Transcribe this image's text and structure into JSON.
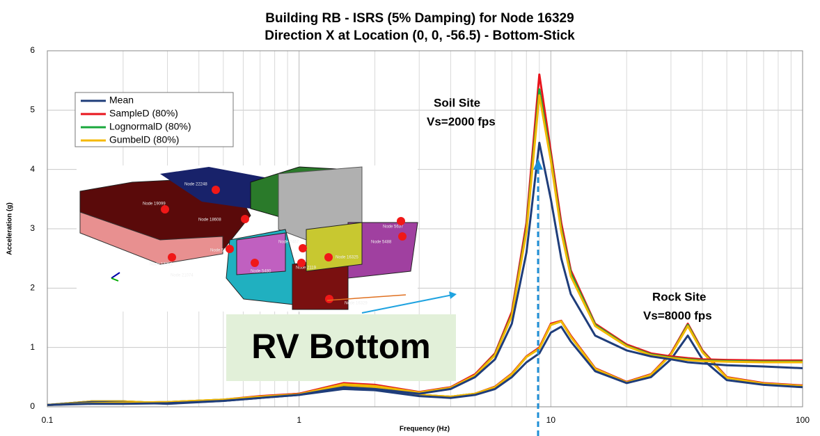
{
  "chart_data": {
    "type": "line",
    "title_lines": [
      "Building RB - ISRS (5% Damping) for Node 16329",
      "Direction X at Location (0, 0, -56.5) - Bottom-Stick"
    ],
    "x_label": "Frequency (Hz)",
    "y_label": "Acceleration (g)",
    "xscale": "log",
    "xlim": [
      0.1,
      100
    ],
    "xticks": [
      0.1,
      1,
      10,
      100
    ],
    "ylim": [
      0,
      6
    ],
    "yticks": [
      0,
      1,
      2,
      3,
      4,
      5,
      6
    ],
    "grid": true,
    "legend": "upper left",
    "x": [
      0.1,
      0.15,
      0.2,
      0.3,
      0.5,
      0.7,
      1,
      1.5,
      2,
      3,
      4,
      5,
      6,
      7,
      8,
      9,
      10,
      11,
      12,
      15,
      20,
      25,
      30,
      35,
      40,
      50,
      70,
      100
    ],
    "series": [
      {
        "name": "Mean",
        "color": "#1f3d7a",
        "values": [
          0.03,
          0.05,
          0.05,
          0.06,
          0.1,
          0.15,
          0.2,
          0.33,
          0.3,
          0.22,
          0.3,
          0.5,
          0.8,
          1.4,
          2.6,
          4.45,
          3.5,
          2.5,
          1.9,
          1.2,
          0.95,
          0.85,
          0.8,
          0.75,
          0.73,
          0.7,
          0.68,
          0.65
        ],
        "rock_values": [
          0.03,
          0.08,
          0.08,
          0.05,
          0.1,
          0.15,
          0.2,
          0.3,
          0.28,
          0.18,
          0.15,
          0.2,
          0.3,
          0.5,
          0.75,
          0.9,
          1.25,
          1.35,
          1.1,
          0.6,
          0.4,
          0.5,
          0.8,
          1.2,
          0.8,
          0.45,
          0.37,
          0.33
        ]
      },
      {
        "name": "SampleD (80%)",
        "color": "#e8141c",
        "values": [
          0.03,
          0.06,
          0.07,
          0.08,
          0.12,
          0.18,
          0.22,
          0.4,
          0.37,
          0.25,
          0.33,
          0.55,
          0.9,
          1.6,
          3.1,
          5.6,
          4.3,
          3.1,
          2.3,
          1.4,
          1.05,
          0.9,
          0.85,
          0.82,
          0.8,
          0.79,
          0.78,
          0.78
        ],
        "rock_values": [
          0.03,
          0.09,
          0.09,
          0.06,
          0.11,
          0.17,
          0.22,
          0.36,
          0.33,
          0.2,
          0.17,
          0.22,
          0.34,
          0.56,
          0.85,
          1.0,
          1.4,
          1.45,
          1.2,
          0.65,
          0.42,
          0.55,
          0.9,
          1.4,
          0.95,
          0.5,
          0.4,
          0.36
        ]
      },
      {
        "name": "LognormalD (80%)",
        "color": "#1aa83c",
        "values": [
          0.03,
          0.06,
          0.07,
          0.08,
          0.12,
          0.17,
          0.21,
          0.38,
          0.35,
          0.24,
          0.32,
          0.53,
          0.88,
          1.55,
          3.0,
          5.35,
          4.2,
          3.0,
          2.25,
          1.38,
          1.03,
          0.88,
          0.83,
          0.8,
          0.78,
          0.77,
          0.76,
          0.76
        ],
        "rock_values": [
          0.03,
          0.09,
          0.09,
          0.06,
          0.11,
          0.17,
          0.22,
          0.35,
          0.32,
          0.2,
          0.17,
          0.22,
          0.33,
          0.55,
          0.84,
          0.98,
          1.38,
          1.44,
          1.18,
          0.64,
          0.41,
          0.54,
          0.88,
          1.38,
          0.93,
          0.49,
          0.39,
          0.35
        ]
      },
      {
        "name": "GumbelD (80%)",
        "color": "#f5b800",
        "values": [
          0.03,
          0.06,
          0.07,
          0.08,
          0.12,
          0.17,
          0.21,
          0.38,
          0.35,
          0.24,
          0.32,
          0.53,
          0.87,
          1.53,
          2.95,
          5.25,
          4.15,
          2.95,
          2.2,
          1.36,
          1.02,
          0.87,
          0.82,
          0.79,
          0.77,
          0.76,
          0.75,
          0.75
        ],
        "rock_values": [
          0.03,
          0.09,
          0.09,
          0.06,
          0.11,
          0.17,
          0.22,
          0.35,
          0.32,
          0.2,
          0.17,
          0.22,
          0.33,
          0.55,
          0.84,
          0.98,
          1.38,
          1.44,
          1.18,
          0.64,
          0.41,
          0.54,
          0.88,
          1.36,
          0.92,
          0.49,
          0.39,
          0.35
        ]
      }
    ],
    "annotations": {
      "soil_site": "Soil Site",
      "soil_vs": "Vs=2000 fps",
      "rock_site": "Rock Site",
      "rock_vs": "Vs=8000 fps",
      "callout": "RV Bottom"
    },
    "inset_labels": [
      "Node 22248",
      "Node 19099",
      "Node 18608",
      "Node 5826",
      "Node 2467",
      "Node 5637",
      "Node 5488",
      "Node 17351",
      "Node 21074",
      "Node 2119",
      "Node 16325",
      "Node 5480",
      "Node 16329"
    ]
  }
}
